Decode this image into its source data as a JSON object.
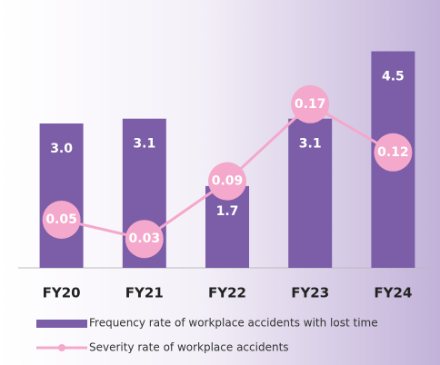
{
  "chart_data": {
    "type": "bar_line",
    "categories": [
      "FY20",
      "FY21",
      "FY22",
      "FY23",
      "FY24"
    ],
    "series": [
      {
        "name": "Frequency rate of workplace accidents with lost time",
        "type": "bar",
        "color": "#7b5ea7",
        "values": [
          3.0,
          3.1,
          1.7,
          3.1,
          4.5
        ],
        "value_labels": [
          "3.0",
          "3.1",
          "1.7",
          "3.1",
          "4.5"
        ]
      },
      {
        "name": "Severity rate of workplace accidents",
        "type": "line",
        "axis": "y2",
        "color": "#f4a8cb",
        "values": [
          0.05,
          0.03,
          0.09,
          0.17,
          0.12
        ]
      }
    ],
    "ylim": [
      0,
      5
    ],
    "y2lim": [
      0,
      0.25
    ]
  }
}
